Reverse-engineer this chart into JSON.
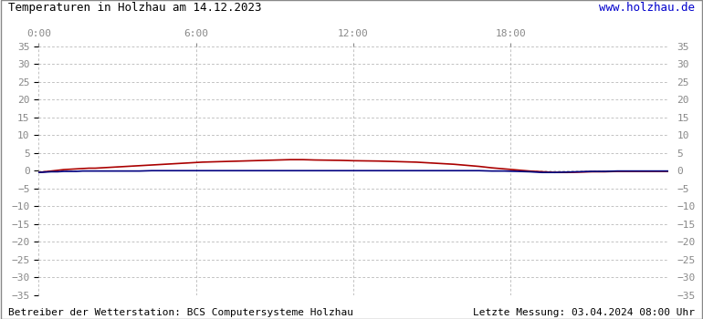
{
  "title_left": "Temperaturen in Holzhau am 14.12.2023",
  "title_right": "www.holzhau.de",
  "title_right_color": "#0000cc",
  "footer_left": "Betreiber der Wetterstation: BCS Computersysteme Holzhau",
  "footer_right": "Letzte Messung: 03.04.2024 08:00 Uhr",
  "footer_color": "#000000",
  "background_color": "#ffffff",
  "grid_color": "#aaaaaa",
  "plot_bg_color": "#ffffff",
  "ylim": [
    -35,
    35
  ],
  "yticks": [
    -35,
    -30,
    -25,
    -20,
    -15,
    -10,
    -5,
    0,
    5,
    10,
    15,
    20,
    25,
    30,
    35
  ],
  "xtick_labels": [
    "0:00",
    "6:00",
    "12:00",
    "18:00"
  ],
  "xtick_positions": [
    0,
    0.25,
    0.5,
    0.75
  ],
  "red_line_x": [
    0.0,
    0.01,
    0.02,
    0.03,
    0.04,
    0.05,
    0.06,
    0.07,
    0.08,
    0.09,
    0.1,
    0.12,
    0.14,
    0.16,
    0.18,
    0.2,
    0.22,
    0.24,
    0.26,
    0.28,
    0.3,
    0.32,
    0.34,
    0.36,
    0.38,
    0.4,
    0.42,
    0.44,
    0.46,
    0.48,
    0.5,
    0.52,
    0.54,
    0.56,
    0.58,
    0.6,
    0.62,
    0.64,
    0.66,
    0.68,
    0.7,
    0.72,
    0.74,
    0.76,
    0.78,
    0.8,
    0.82,
    0.84,
    0.86,
    0.88,
    0.9,
    0.92,
    0.94,
    0.96,
    0.98,
    1.0
  ],
  "red_line_y": [
    -0.5,
    -0.3,
    -0.1,
    0.1,
    0.3,
    0.4,
    0.5,
    0.6,
    0.7,
    0.7,
    0.8,
    1.0,
    1.2,
    1.4,
    1.6,
    1.8,
    2.0,
    2.2,
    2.4,
    2.5,
    2.6,
    2.7,
    2.8,
    2.9,
    3.0,
    3.1,
    3.1,
    3.0,
    2.95,
    2.9,
    2.8,
    2.75,
    2.7,
    2.6,
    2.5,
    2.4,
    2.2,
    2.0,
    1.8,
    1.5,
    1.2,
    0.8,
    0.5,
    0.2,
    -0.1,
    -0.3,
    -0.5,
    -0.5,
    -0.4,
    -0.3,
    -0.3,
    -0.2,
    -0.2,
    -0.2,
    -0.2,
    -0.2
  ],
  "blue_line_x": [
    0.0,
    0.01,
    0.02,
    0.03,
    0.04,
    0.05,
    0.06,
    0.07,
    0.08,
    0.09,
    0.1,
    0.12,
    0.14,
    0.16,
    0.18,
    0.2,
    0.22,
    0.24,
    0.26,
    0.28,
    0.3,
    0.32,
    0.34,
    0.36,
    0.38,
    0.4,
    0.42,
    0.44,
    0.46,
    0.48,
    0.5,
    0.52,
    0.54,
    0.56,
    0.58,
    0.6,
    0.62,
    0.64,
    0.66,
    0.68,
    0.7,
    0.72,
    0.74,
    0.76,
    0.78,
    0.8,
    0.82,
    0.84,
    0.86,
    0.88,
    0.9,
    0.92,
    0.94,
    0.96,
    0.98,
    1.0
  ],
  "blue_line_y": [
    -0.5,
    -0.4,
    -0.3,
    -0.3,
    -0.2,
    -0.2,
    -0.2,
    -0.1,
    -0.1,
    -0.1,
    -0.1,
    -0.1,
    -0.1,
    -0.1,
    0.0,
    0.0,
    0.0,
    0.0,
    0.0,
    0.0,
    0.0,
    0.0,
    0.0,
    0.0,
    0.0,
    0.0,
    0.0,
    0.0,
    0.0,
    0.0,
    0.0,
    0.0,
    0.0,
    0.0,
    0.0,
    0.0,
    0.0,
    0.0,
    0.0,
    0.0,
    0.0,
    -0.1,
    -0.1,
    -0.2,
    -0.3,
    -0.5,
    -0.5,
    -0.4,
    -0.3,
    -0.2,
    -0.2,
    -0.1,
    -0.1,
    -0.1,
    -0.1,
    -0.1
  ],
  "red_color": "#aa0000",
  "blue_color": "#000080",
  "line_width": 1.2,
  "tick_label_color": "#888888",
  "tick_label_fontsize": 8,
  "title_fontsize": 9,
  "footer_fontsize": 8
}
